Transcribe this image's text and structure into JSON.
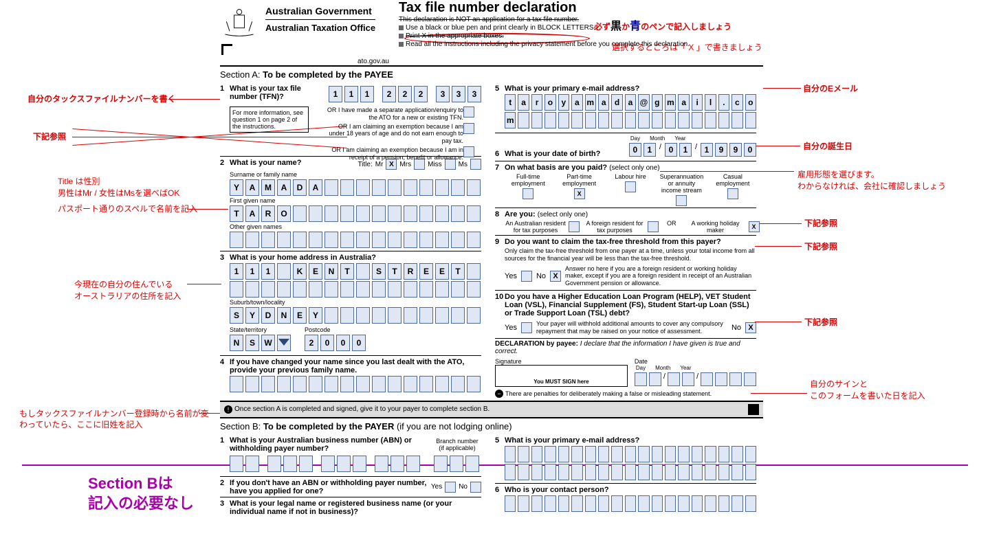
{
  "header": {
    "gov": "Australian Government",
    "ato": "Australian Taxation Office",
    "website": "ato.gov.au",
    "title": "Tax file number declaration",
    "subtitle": "This declaration is NOT an application for a tax file number.",
    "instr1": "Use a black or blue pen and print clearly in BLOCK LETTERS.",
    "instr2": "Print X in the appropriate boxes.",
    "instr3": "Read all the instructions including the privacy statement before you complete this declaration."
  },
  "sectionA": {
    "title_pre": "Section A: ",
    "title_bold": "To be completed by the PAYEE",
    "q1": {
      "num": "1",
      "text": "What is your tax file number (TFN)?",
      "tfn": [
        "1",
        "1",
        "1",
        "2",
        "2",
        "2",
        "3",
        "3",
        "3"
      ],
      "or1": "OR I have made a separate application/enquiry to the ATO for a new or existing TFN.",
      "or2": "OR I am claiming an exemption because I am under 18 years of age and do not earn enough to pay tax.",
      "or3": "OR I am claiming an exemption because I am in receipt of a pension, benefit or allowance.",
      "info": "For more information, see question 1 on page 2 of the instructions."
    },
    "q2": {
      "num": "2",
      "text": "What is your name?",
      "title_label": "Title:",
      "mr": "Mr",
      "mrs": "Mrs",
      "miss": "Miss",
      "ms": "Ms",
      "surname_label": "Surname or family name",
      "surname": [
        "Y",
        "A",
        "M",
        "A",
        "D",
        "A"
      ],
      "first_label": "First given name",
      "first": [
        "T",
        "A",
        "R",
        "O"
      ],
      "other_label": "Other given names"
    },
    "q3": {
      "num": "3",
      "text": "What is your home address in Australia?",
      "addr1": [
        "1",
        "1",
        "1",
        "",
        "K",
        "E",
        "N",
        "T",
        "",
        "S",
        "T",
        "R",
        "E",
        "E",
        "T"
      ],
      "locality_label": "Suburb/town/locality",
      "locality": [
        "S",
        "Y",
        "D",
        "N",
        "E",
        "Y"
      ],
      "state_label": "State/territory",
      "state": [
        "N",
        "S",
        "W"
      ],
      "postcode_label": "Postcode",
      "postcode": [
        "2",
        "0",
        "0",
        "0"
      ]
    },
    "q4": {
      "num": "4",
      "text": "If you have changed your name since you last dealt with the ATO, provide your previous family name."
    },
    "q5": {
      "num": "5",
      "text": "What is your primary e-mail address?",
      "email": [
        "t",
        "a",
        "r",
        "o",
        "y",
        "a",
        "m",
        "a",
        "d",
        "a",
        "@",
        "g",
        "m",
        "a",
        "i",
        "l",
        ".",
        "c",
        "o",
        "m"
      ]
    },
    "q6": {
      "num": "6",
      "text": "What is your date of birth?",
      "day": "Day",
      "month": "Month",
      "year": "Year",
      "d": [
        "0",
        "1"
      ],
      "m": [
        "0",
        "1"
      ],
      "y": [
        "1",
        "9",
        "9",
        "0"
      ]
    },
    "q7": {
      "num": "7",
      "text": "On what basis are you paid?",
      "sub": "(select only one)",
      "opts": [
        "Full-time employment",
        "Part-time employment",
        "Labour hire",
        "Superannuation or annuity income stream",
        "Casual employment"
      ],
      "selected": 1
    },
    "q8": {
      "num": "8",
      "text": "Are you:",
      "sub": "(select only one)",
      "opts": [
        "An Australian resident for tax purposes",
        "A foreign resident for tax purposes",
        "A working holiday maker"
      ],
      "or": "OR",
      "selected": 2
    },
    "q9": {
      "num": "9",
      "text": "Do you want to claim the tax-free threshold from this payer?",
      "fine1": "Only claim the tax-free threshold from one payer at a time, unless your total income from all sources for the financial year will be less than the tax-free threshold.",
      "yes": "Yes",
      "no": "No",
      "no_x": "X",
      "fine2": "Answer no here if you are a foreign resident or working holiday maker, except if you are a foreign resident in receipt of an Australian Government pension or allowance."
    },
    "q10": {
      "num": "10",
      "text": "Do you have a Higher Education Loan Program (HELP), VET Student Loan (VSL), Financial Supplement (FS), Student Start-up Loan (SSL) or Trade Support Loan (TSL) debt?",
      "yes": "Yes",
      "no": "No",
      "no_x": "X",
      "fine": "Your payer will withhold additional amounts to cover any compulsory repayment that may be raised on your notice of assessment."
    },
    "decl": {
      "label": "DECLARATION by payee:",
      "text": "I declare that the information I have given is true and correct.",
      "sig_label": "Signature",
      "sign_here": "You MUST SIGN here",
      "date": "Date",
      "day": "Day",
      "month": "Month",
      "year": "Year",
      "penalty": "There are penalties for deliberately making a false or misleading statement."
    },
    "bar": "Once section A is completed and signed, give it to your payer to complete section B."
  },
  "sectionB": {
    "title_pre": "Section B: ",
    "title_bold": "To be completed by the PAYER ",
    "title_sub": "(if you are not lodging online)",
    "q1": {
      "num": "1",
      "text": "What is your Australian business number (ABN) or withholding payer number?",
      "branch": "Branch number (if applicable)"
    },
    "q2": {
      "num": "2",
      "text": "If you don't have an ABN or withholding payer number, have you applied for one?",
      "yes": "Yes",
      "no": "No"
    },
    "q3": {
      "num": "3",
      "text": "What is your legal name or registered business name (or your individual name if not in business)?"
    },
    "q5": {
      "num": "5",
      "text": "What is your primary e-mail address?"
    },
    "q6": {
      "num": "6",
      "text": "Who is your contact person?"
    }
  },
  "annotations": {
    "top1_pre": "必ず",
    "top1_black": "黒",
    "top1_mid": "か",
    "top1_blue": "青",
    "top1_post": "のペンで記入しましょう",
    "top2": "選択するところは「 X 」で書きましょう",
    "left1": "自分のタックスファイルナンバーを書く",
    "left2": "下記参照",
    "left3a": "Title は性別",
    "left3b": "男性はMr / 女性はMsを選べばOK",
    "left4": "パスポート通りのスペルで名前を記入",
    "left5a": "今現在の自分の住んでいる",
    "left5b": "オーストラリアの住所を記入",
    "left6": "もしタックスファイルナンバー登録時から名前が変わっていたら、ここに旧姓を記入",
    "right1": "自分のEメール",
    "right2": "自分の誕生日",
    "right3a": "雇用形態を選びます。",
    "right3b": "わからなければ、会社に確認しましょう",
    "right4": "下記参照",
    "right5": "下記参照",
    "right6": "下記参照",
    "right7a": "自分のサインと",
    "right7b": "このフォームを書いた日を記入",
    "secB_a": "Section Bは",
    "secB_b": "記入の必要なし"
  },
  "colors": {
    "box_bg": "#e0e7f4",
    "box_border": "#4d6a99",
    "anno": "#d00",
    "anno_blue": "#00a",
    "anno_purple": "#a0a"
  }
}
